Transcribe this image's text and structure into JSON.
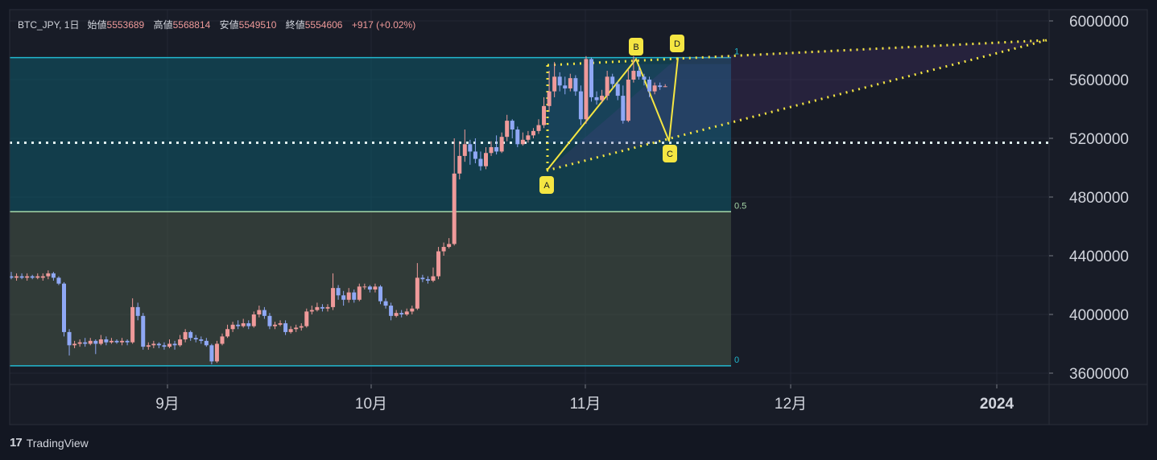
{
  "header": {
    "symbol": "BTC_JPY, 1日",
    "open_label": "始値",
    "open": "5553689",
    "high_label": "高値",
    "high": "5568814",
    "low_label": "安値",
    "low": "5549510",
    "close_label": "終値",
    "close": "5554606",
    "change": "+917 (+0.02%)"
  },
  "brand": {
    "logo": "17",
    "name": "TradingView"
  },
  "colors": {
    "up": "#ef9a9a",
    "down": "#8fa8f5",
    "fib_top": "#22b8cf",
    "fib_mid": "#a5d6a7",
    "pattern": "#f5e642",
    "dotline": "#e0f2f1"
  },
  "chart_data": {
    "type": "candlestick",
    "ylim": [
      3550000,
      6050000
    ],
    "y_ticks": [
      "3600000",
      "4000000",
      "4400000",
      "4800000",
      "5200000",
      "5600000",
      "6000000"
    ],
    "x_ticks": [
      "9月",
      "10月",
      "11月",
      "12月",
      "2024"
    ],
    "fib_labels": {
      "top": "1",
      "mid": "0.5",
      "bottom": "0"
    },
    "fib_levels": {
      "top": 5750000,
      "mid": 4700000,
      "bottom": 3650000
    },
    "support_line": 5170000,
    "pattern_points": [
      {
        "label": "A",
        "value": 4980000
      },
      {
        "label": "B",
        "value": 5740000
      },
      {
        "label": "C",
        "value": 5180000
      },
      {
        "label": "D",
        "value": 5750000
      }
    ],
    "candles": [
      [
        4260000,
        4250000,
        4290000,
        4240000
      ],
      [
        4250000,
        4260000,
        4280000,
        4230000
      ],
      [
        4260000,
        4250000,
        4280000,
        4240000
      ],
      [
        4250000,
        4260000,
        4280000,
        4230000
      ],
      [
        4260000,
        4250000,
        4270000,
        4240000
      ],
      [
        4250000,
        4260000,
        4280000,
        4240000
      ],
      [
        4250000,
        4260000,
        4280000,
        4230000
      ],
      [
        4260000,
        4280000,
        4300000,
        4240000
      ],
      [
        4280000,
        4250000,
        4290000,
        4230000
      ],
      [
        4250000,
        4210000,
        4260000,
        4200000
      ],
      [
        4210000,
        3880000,
        4220000,
        3850000
      ],
      [
        3880000,
        3790000,
        3900000,
        3720000
      ],
      [
        3790000,
        3800000,
        3820000,
        3770000
      ],
      [
        3800000,
        3810000,
        3830000,
        3780000
      ],
      [
        3810000,
        3800000,
        3840000,
        3780000
      ],
      [
        3800000,
        3820000,
        3840000,
        3790000
      ],
      [
        3820000,
        3800000,
        3830000,
        3730000
      ],
      [
        3800000,
        3830000,
        3860000,
        3790000
      ],
      [
        3830000,
        3810000,
        3850000,
        3790000
      ],
      [
        3810000,
        3820000,
        3840000,
        3800000
      ],
      [
        3820000,
        3810000,
        3830000,
        3800000
      ],
      [
        3810000,
        3820000,
        3840000,
        3790000
      ],
      [
        3820000,
        3810000,
        3830000,
        3790000
      ],
      [
        3810000,
        4050000,
        4110000,
        3800000
      ],
      [
        4050000,
        3990000,
        4080000,
        3960000
      ],
      [
        3990000,
        3780000,
        4010000,
        3760000
      ],
      [
        3780000,
        3790000,
        3810000,
        3760000
      ],
      [
        3790000,
        3800000,
        3820000,
        3770000
      ],
      [
        3800000,
        3790000,
        3810000,
        3770000
      ],
      [
        3790000,
        3780000,
        3810000,
        3760000
      ],
      [
        3780000,
        3800000,
        3830000,
        3770000
      ],
      [
        3800000,
        3790000,
        3820000,
        3760000
      ],
      [
        3790000,
        3830000,
        3860000,
        3780000
      ],
      [
        3830000,
        3880000,
        3900000,
        3810000
      ],
      [
        3880000,
        3840000,
        3890000,
        3820000
      ],
      [
        3840000,
        3830000,
        3860000,
        3810000
      ],
      [
        3830000,
        3820000,
        3850000,
        3800000
      ],
      [
        3820000,
        3790000,
        3840000,
        3780000
      ],
      [
        3790000,
        3680000,
        3800000,
        3660000
      ],
      [
        3680000,
        3800000,
        3820000,
        3670000
      ],
      [
        3800000,
        3850000,
        3870000,
        3790000
      ],
      [
        3850000,
        3900000,
        3930000,
        3840000
      ],
      [
        3900000,
        3930000,
        3950000,
        3880000
      ],
      [
        3930000,
        3920000,
        3960000,
        3900000
      ],
      [
        3920000,
        3940000,
        3970000,
        3910000
      ],
      [
        3940000,
        3920000,
        3960000,
        3900000
      ],
      [
        3920000,
        4000000,
        4020000,
        3910000
      ],
      [
        4000000,
        4030000,
        4060000,
        3980000
      ],
      [
        4030000,
        3990000,
        4050000,
        3970000
      ],
      [
        3990000,
        3920000,
        4010000,
        3900000
      ],
      [
        3920000,
        3930000,
        3950000,
        3900000
      ],
      [
        3930000,
        3940000,
        3960000,
        3920000
      ],
      [
        3940000,
        3880000,
        3960000,
        3860000
      ],
      [
        3880000,
        3900000,
        3920000,
        3870000
      ],
      [
        3900000,
        3910000,
        3930000,
        3880000
      ],
      [
        3910000,
        3920000,
        3940000,
        3890000
      ],
      [
        3920000,
        4020000,
        4040000,
        3910000
      ],
      [
        4020000,
        4030000,
        4060000,
        4000000
      ],
      [
        4030000,
        4050000,
        4080000,
        4020000
      ],
      [
        4050000,
        4040000,
        4070000,
        4020000
      ],
      [
        4040000,
        4050000,
        4070000,
        4020000
      ],
      [
        4050000,
        4180000,
        4280000,
        4030000
      ],
      [
        4180000,
        4130000,
        4200000,
        4100000
      ],
      [
        4130000,
        4100000,
        4160000,
        4060000
      ],
      [
        4100000,
        4150000,
        4180000,
        4080000
      ],
      [
        4150000,
        4100000,
        4170000,
        4080000
      ],
      [
        4100000,
        4190000,
        4210000,
        4090000
      ],
      [
        4190000,
        4190000,
        4210000,
        4170000
      ],
      [
        4190000,
        4170000,
        4200000,
        4150000
      ],
      [
        4170000,
        4190000,
        4210000,
        4150000
      ],
      [
        4190000,
        4090000,
        4200000,
        4070000
      ],
      [
        4090000,
        4060000,
        4110000,
        4040000
      ],
      [
        4060000,
        3990000,
        4080000,
        3960000
      ],
      [
        3990000,
        4010000,
        4030000,
        3980000
      ],
      [
        4010000,
        4000000,
        4030000,
        3980000
      ],
      [
        4000000,
        4020000,
        4040000,
        3990000
      ],
      [
        4020000,
        4040000,
        4060000,
        4000000
      ],
      [
        4040000,
        4250000,
        4350000,
        4030000
      ],
      [
        4250000,
        4240000,
        4270000,
        4220000
      ],
      [
        4240000,
        4230000,
        4260000,
        4210000
      ],
      [
        4230000,
        4260000,
        4320000,
        4220000
      ],
      [
        4260000,
        4430000,
        4460000,
        4240000
      ],
      [
        4430000,
        4460000,
        4490000,
        4400000
      ],
      [
        4460000,
        4480000,
        4520000,
        4450000
      ],
      [
        4480000,
        4960000,
        5200000,
        4470000
      ],
      [
        4960000,
        5080000,
        5180000,
        4920000
      ],
      [
        5080000,
        5160000,
        5260000,
        5040000
      ],
      [
        5160000,
        5110000,
        5190000,
        5020000
      ],
      [
        5110000,
        5060000,
        5200000,
        5030000
      ],
      [
        5060000,
        5010000,
        5110000,
        4980000
      ],
      [
        5010000,
        5100000,
        5140000,
        4990000
      ],
      [
        5100000,
        5140000,
        5180000,
        5080000
      ],
      [
        5140000,
        5110000,
        5220000,
        5090000
      ],
      [
        5110000,
        5210000,
        5240000,
        5100000
      ],
      [
        5210000,
        5320000,
        5360000,
        5180000
      ],
      [
        5320000,
        5260000,
        5330000,
        5200000
      ],
      [
        5260000,
        5160000,
        5280000,
        5140000
      ],
      [
        5160000,
        5190000,
        5240000,
        5150000
      ],
      [
        5190000,
        5220000,
        5250000,
        5170000
      ],
      [
        5220000,
        5250000,
        5270000,
        5200000
      ],
      [
        5250000,
        5290000,
        5330000,
        5230000
      ],
      [
        5290000,
        5420000,
        5480000,
        5270000
      ],
      [
        5420000,
        5520000,
        5660000,
        5380000
      ],
      [
        5520000,
        5620000,
        5720000,
        5480000
      ],
      [
        5620000,
        5560000,
        5650000,
        5520000
      ],
      [
        5560000,
        5540000,
        5620000,
        5500000
      ],
      [
        5540000,
        5610000,
        5640000,
        5520000
      ],
      [
        5610000,
        5520000,
        5630000,
        5490000
      ],
      [
        5520000,
        5330000,
        5560000,
        5290000
      ],
      [
        5330000,
        5740000,
        5760000,
        5300000
      ],
      [
        5740000,
        5480000,
        5750000,
        5450000
      ],
      [
        5480000,
        5460000,
        5520000,
        5430000
      ],
      [
        5460000,
        5490000,
        5530000,
        5440000
      ],
      [
        5490000,
        5620000,
        5660000,
        5460000
      ],
      [
        5620000,
        5570000,
        5640000,
        5540000
      ],
      [
        5570000,
        5490000,
        5590000,
        5460000
      ],
      [
        5490000,
        5320000,
        5560000,
        5300000
      ],
      [
        5320000,
        5600000,
        5670000,
        5310000
      ],
      [
        5600000,
        5660000,
        5760000,
        5580000
      ],
      [
        5660000,
        5620000,
        5690000,
        5600000
      ],
      [
        5620000,
        5600000,
        5640000,
        5560000
      ],
      [
        5600000,
        5520000,
        5620000,
        5480000
      ],
      [
        5520000,
        5560000,
        5580000,
        5500000
      ],
      [
        5560000,
        5550000,
        5580000,
        5530000
      ],
      [
        5553689,
        5554606,
        5568814,
        5549510
      ]
    ]
  }
}
